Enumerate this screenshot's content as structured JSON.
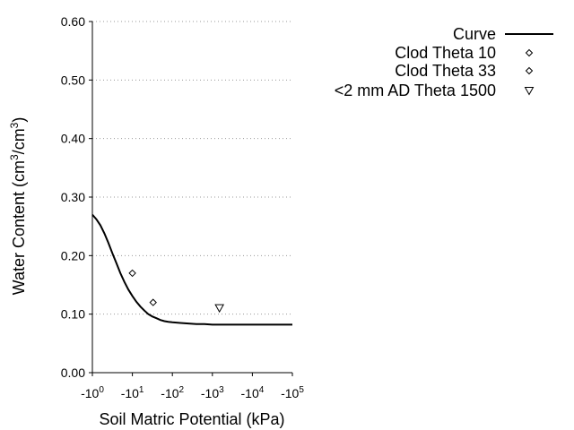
{
  "chart_data": {
    "type": "line",
    "xlabel": "Soil Matric Potential (kPa)",
    "ylabel_main": "Water Content (cm",
    "ylabel_sup1": "3",
    "ylabel_mid": "/cm",
    "ylabel_sup2": "3",
    "ylabel_end": ")",
    "x_scale": "log",
    "xlim_exponent": [
      0,
      5
    ],
    "x_ticks": [
      {
        "base": "-10",
        "exp": "0"
      },
      {
        "base": "-10",
        "exp": "1"
      },
      {
        "base": "-10",
        "exp": "2"
      },
      {
        "base": "-10",
        "exp": "3"
      },
      {
        "base": "-10",
        "exp": "4"
      },
      {
        "base": "-10",
        "exp": "5"
      }
    ],
    "ylim": [
      0,
      0.6
    ],
    "y_ticks": [
      "0.00",
      "0.10",
      "0.20",
      "0.30",
      "0.40",
      "0.50",
      "0.60"
    ],
    "y_grid": true,
    "legend_position": "top-right",
    "series": [
      {
        "name": "Curve",
        "kind": "line",
        "color": "#000000",
        "x": [
          -1,
          -1.26,
          -1.58,
          -2,
          -2.51,
          -3.16,
          -3.98,
          -5.01,
          -6.31,
          -7.94,
          -10,
          -12.6,
          -15.8,
          -20,
          -25.1,
          -31.6,
          -39.8,
          -50.1,
          -63.1,
          -79.4,
          -100,
          -158,
          -251,
          -398,
          -631,
          -1000,
          -3162,
          -10000,
          -31623,
          -100000
        ],
        "y": [
          0.27,
          0.262,
          0.252,
          0.238,
          0.222,
          0.204,
          0.187,
          0.17,
          0.155,
          0.142,
          0.131,
          0.121,
          0.113,
          0.106,
          0.1,
          0.096,
          0.093,
          0.09,
          0.088,
          0.087,
          0.086,
          0.085,
          0.084,
          0.083,
          0.083,
          0.082,
          0.082,
          0.082,
          0.082,
          0.082
        ]
      },
      {
        "name": "Clod Theta 10",
        "kind": "scatter",
        "marker": "diamond",
        "x": [
          -10
        ],
        "y": [
          0.17
        ]
      },
      {
        "name": "Clod Theta 33",
        "kind": "scatter",
        "marker": "diamond",
        "x": [
          -33
        ],
        "y": [
          0.12
        ]
      },
      {
        "name": "<2 mm AD Theta 1500",
        "kind": "scatter",
        "marker": "triangle-down",
        "x": [
          -1500
        ],
        "y": [
          0.11
        ]
      }
    ]
  }
}
